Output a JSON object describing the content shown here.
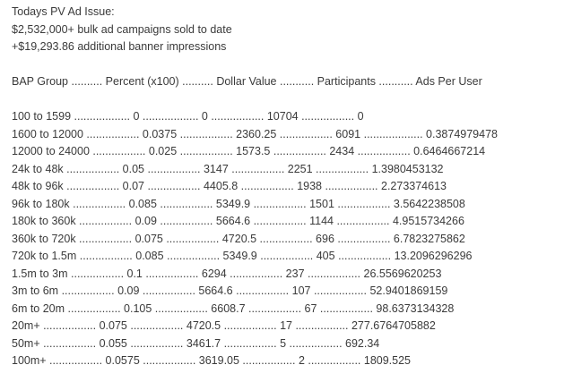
{
  "intro": {
    "title": "Todays PV Ad Issue:",
    "line1": "$2,532,000+ bulk ad campaigns sold to date",
    "line2": "+$19,293.86 additional banner impressions"
  },
  "table": {
    "header": "BAP Group .......... Percent (x100) .......... Dollar Value ........... Participants ........... Ads Per User",
    "rows": [
      "100 to 1599 .................. 0 .................. 0 ................. 10704 ................. 0",
      "1600 to 12000 ................. 0.0375 ................. 2360.25 ................. 6091 ................... 0.3874979478",
      "12000 to 24000 ................. 0.025 ................. 1573.5 ................. 2434 ................. 0.6464667214",
      "24k to 48k ................. 0.05 ................. 3147 ................. 2251 ................. 1.3980453132",
      "48k to 96k ................. 0.07 ................. 4405.8 ................. 1938 ................. 2.273374613",
      "96k to 180k ................. 0.085 ................. 5349.9 ................. 1501 ................. 3.5642238508",
      "180k to 360k ................. 0.09 ................. 5664.6 ................. 1144 ................. 4.9515734266",
      "360k to 720k ................. 0.075 ................. 4720.5 ................. 696 ................. 6.7823275862",
      "720k to 1.5m ................. 0.085 ................. 5349.9 ................. 405 ................. 13.2096296296",
      "1.5m to 3m ................. 0.1 ................. 6294 ................. 237 ................. 26.5569620253",
      "3m to 6m ................. 0.09 ................. 5664.6 ................. 107 ................. 52.9401869159",
      "6m to 20m ................. 0.105 ................. 6608.7 ................. 67 ................. 98.6373134328",
      "20m+ ................. 0.075 ................. 4720.5 ................. 17 ................. 277.6764705882",
      "50m+ ................. 0.055 ................. 3461.7 ................. 5 ................. 692.34",
      "100m+ ................. 0.0575 ................. 3619.05 ................. 2 ................. 1809.525"
    ]
  }
}
